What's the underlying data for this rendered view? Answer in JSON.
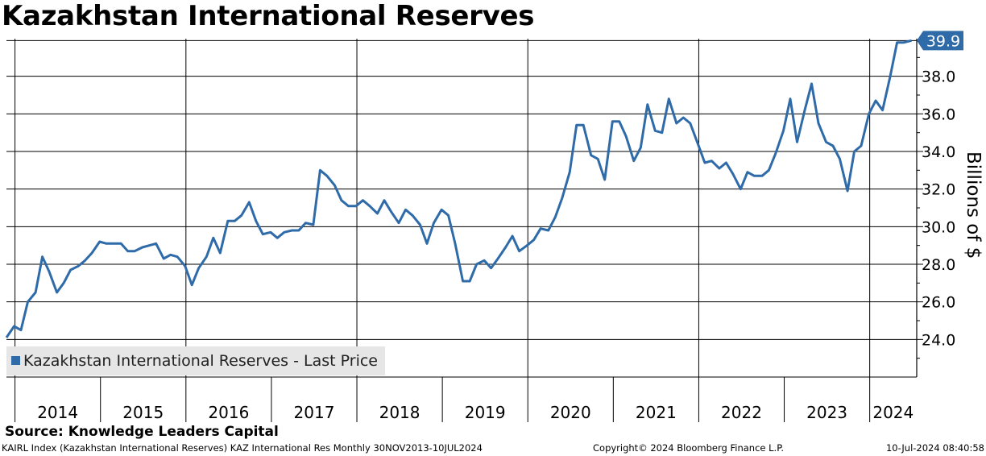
{
  "title": "Kazakhstan International Reserves",
  "source": "Source: Knowledge Leaders Capital",
  "footer": {
    "left": "KAIRL Index (Kazakhstan International Reserves) KAZ International Res  Monthly 30NOV2013-10JUL2024",
    "middle": "Copyright© 2024 Bloomberg Finance L.P.",
    "right": "10-Jul-2024 08:40:58"
  },
  "legend": {
    "label": "Kazakhstan International Reserves - Last Price"
  },
  "colors": {
    "line": "#2f6ba8",
    "last_badge": "#2f6ba8"
  },
  "chart_data": {
    "type": "line",
    "title": "Kazakhstan International Reserves",
    "ylabel": "Billions of $",
    "ylim": [
      22.0,
      40.0
    ],
    "yticks": [
      24.0,
      26.0,
      28.0,
      30.0,
      32.0,
      34.0,
      36.0,
      38.0
    ],
    "ytick_labels": [
      "24.0",
      "26.0",
      "28.0",
      "30.0",
      "32.0",
      "34.0",
      "36.0",
      "38.0"
    ],
    "x_range": [
      2013.9,
      2024.55
    ],
    "year_labels": [
      "2014",
      "2015",
      "2016",
      "2017",
      "2018",
      "2019",
      "2020",
      "2021",
      "2022",
      "2023",
      "2024"
    ],
    "year_gridlines": [
      2014,
      2016,
      2018,
      2020,
      2022,
      2024
    ],
    "last_value_label": "39.9",
    "legend_position": "bottom-left",
    "series": [
      {
        "name": "Kazakhstan International Reserves - Last Price",
        "points": [
          [
            2013.9,
            24.1
          ],
          [
            2013.99,
            24.7
          ],
          [
            2014.07,
            24.5
          ],
          [
            2014.15,
            26.0
          ],
          [
            2014.24,
            26.5
          ],
          [
            2014.32,
            28.4
          ],
          [
            2014.4,
            27.6
          ],
          [
            2014.49,
            26.5
          ],
          [
            2014.57,
            27.0
          ],
          [
            2014.65,
            27.7
          ],
          [
            2014.74,
            27.9
          ],
          [
            2014.82,
            28.2
          ],
          [
            2014.9,
            28.6
          ],
          [
            2014.99,
            29.2
          ],
          [
            2015.07,
            29.1
          ],
          [
            2015.15,
            29.1
          ],
          [
            2015.24,
            29.1
          ],
          [
            2015.32,
            28.7
          ],
          [
            2015.4,
            28.7
          ],
          [
            2015.49,
            28.9
          ],
          [
            2015.57,
            29.0
          ],
          [
            2015.65,
            29.1
          ],
          [
            2015.74,
            28.3
          ],
          [
            2015.82,
            28.5
          ],
          [
            2015.9,
            28.4
          ],
          [
            2015.99,
            27.9
          ],
          [
            2016.07,
            26.9
          ],
          [
            2016.15,
            27.8
          ],
          [
            2016.24,
            28.4
          ],
          [
            2016.32,
            29.4
          ],
          [
            2016.4,
            28.6
          ],
          [
            2016.49,
            30.3
          ],
          [
            2016.57,
            30.3
          ],
          [
            2016.65,
            30.6
          ],
          [
            2016.74,
            31.3
          ],
          [
            2016.82,
            30.3
          ],
          [
            2016.9,
            29.6
          ],
          [
            2016.99,
            29.7
          ],
          [
            2017.07,
            29.4
          ],
          [
            2017.15,
            29.7
          ],
          [
            2017.24,
            29.8
          ],
          [
            2017.32,
            29.8
          ],
          [
            2017.4,
            30.2
          ],
          [
            2017.49,
            30.1
          ],
          [
            2017.57,
            33.0
          ],
          [
            2017.65,
            32.7
          ],
          [
            2017.74,
            32.2
          ],
          [
            2017.82,
            31.4
          ],
          [
            2017.9,
            31.1
          ],
          [
            2017.99,
            31.1
          ],
          [
            2018.07,
            31.4
          ],
          [
            2018.15,
            31.1
          ],
          [
            2018.24,
            30.7
          ],
          [
            2018.32,
            31.4
          ],
          [
            2018.4,
            30.8
          ],
          [
            2018.49,
            30.2
          ],
          [
            2018.57,
            30.9
          ],
          [
            2018.65,
            30.6
          ],
          [
            2018.74,
            30.1
          ],
          [
            2018.82,
            29.1
          ],
          [
            2018.9,
            30.2
          ],
          [
            2018.99,
            30.9
          ],
          [
            2019.07,
            30.6
          ],
          [
            2019.15,
            29.1
          ],
          [
            2019.24,
            27.1
          ],
          [
            2019.32,
            27.1
          ],
          [
            2019.4,
            28.0
          ],
          [
            2019.49,
            28.2
          ],
          [
            2019.57,
            27.8
          ],
          [
            2019.65,
            28.3
          ],
          [
            2019.74,
            28.9
          ],
          [
            2019.82,
            29.5
          ],
          [
            2019.9,
            28.7
          ],
          [
            2019.99,
            29.0
          ],
          [
            2020.07,
            29.3
          ],
          [
            2020.15,
            29.9
          ],
          [
            2020.24,
            29.8
          ],
          [
            2020.32,
            30.5
          ],
          [
            2020.4,
            31.5
          ],
          [
            2020.49,
            32.9
          ],
          [
            2020.57,
            35.4
          ],
          [
            2020.65,
            35.4
          ],
          [
            2020.74,
            33.8
          ],
          [
            2020.82,
            33.6
          ],
          [
            2020.9,
            32.5
          ],
          [
            2020.99,
            35.6
          ],
          [
            2021.07,
            35.6
          ],
          [
            2021.15,
            34.8
          ],
          [
            2021.24,
            33.5
          ],
          [
            2021.32,
            34.2
          ],
          [
            2021.4,
            36.5
          ],
          [
            2021.49,
            35.1
          ],
          [
            2021.57,
            35.0
          ],
          [
            2021.65,
            36.8
          ],
          [
            2021.74,
            35.5
          ],
          [
            2021.82,
            35.8
          ],
          [
            2021.9,
            35.5
          ],
          [
            2021.99,
            34.4
          ],
          [
            2022.07,
            33.4
          ],
          [
            2022.15,
            33.5
          ],
          [
            2022.24,
            33.1
          ],
          [
            2022.32,
            33.4
          ],
          [
            2022.4,
            32.8
          ],
          [
            2022.49,
            32.0
          ],
          [
            2022.57,
            32.9
          ],
          [
            2022.65,
            32.7
          ],
          [
            2022.74,
            32.7
          ],
          [
            2022.82,
            33.0
          ],
          [
            2022.9,
            33.9
          ],
          [
            2022.99,
            35.1
          ],
          [
            2023.07,
            36.8
          ],
          [
            2023.15,
            34.5
          ],
          [
            2023.24,
            36.2
          ],
          [
            2023.32,
            37.6
          ],
          [
            2023.4,
            35.5
          ],
          [
            2023.49,
            34.5
          ],
          [
            2023.57,
            34.3
          ],
          [
            2023.65,
            33.6
          ],
          [
            2023.74,
            31.9
          ],
          [
            2023.82,
            34.0
          ],
          [
            2023.9,
            34.3
          ],
          [
            2023.99,
            36.0
          ],
          [
            2024.07,
            36.7
          ],
          [
            2024.15,
            36.2
          ],
          [
            2024.24,
            38.0
          ],
          [
            2024.32,
            39.8
          ],
          [
            2024.4,
            39.8
          ],
          [
            2024.49,
            39.9
          ]
        ]
      }
    ]
  }
}
